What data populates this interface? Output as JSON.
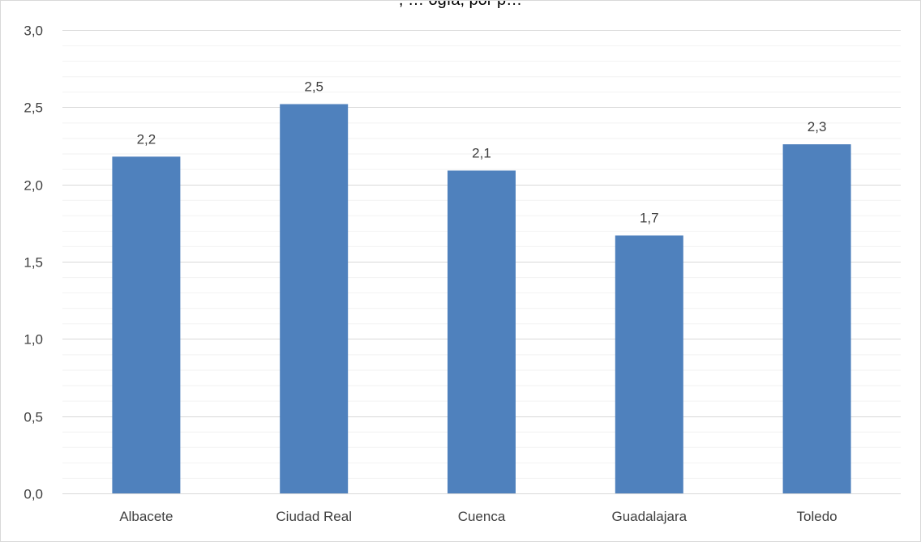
{
  "chart_data": {
    "type": "bar",
    "title": ", … ogía, por p…",
    "categories": [
      "Albacete",
      "Ciudad Real",
      "Cuenca",
      "Guadalajara",
      "Toledo"
    ],
    "values": [
      2.18,
      2.52,
      2.09,
      1.67,
      2.26
    ],
    "data_labels": [
      "2,2",
      "2,5",
      "2,1",
      "1,7",
      "2,3"
    ],
    "ylim": [
      0,
      3
    ],
    "y_ticks": [
      {
        "value": 0.0,
        "label": "0,0"
      },
      {
        "value": 0.5,
        "label": "0,5"
      },
      {
        "value": 1.0,
        "label": "1,0"
      },
      {
        "value": 1.5,
        "label": "1,5"
      },
      {
        "value": 2.0,
        "label": "2,0"
      },
      {
        "value": 2.5,
        "label": "2,5"
      },
      {
        "value": 3.0,
        "label": "3,0"
      }
    ],
    "minor_grid_step": 0.1,
    "grid": true,
    "legend": "none",
    "colors": {
      "bar": "#4f81bd",
      "major_grid": "#d9d9d9",
      "minor_grid": "#f2f2f2",
      "axis": "#d9d9d9"
    }
  }
}
